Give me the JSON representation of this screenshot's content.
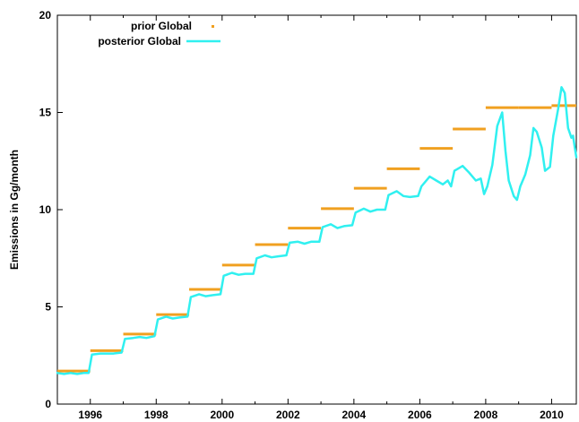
{
  "chart_data": {
    "type": "line",
    "ylabel": "Emissions in Gg/month",
    "xlim": [
      1995.0,
      2010.75
    ],
    "ylim": [
      0,
      20
    ],
    "x_ticks": [
      1996,
      1998,
      2000,
      2002,
      2004,
      2006,
      2008,
      2010
    ],
    "y_ticks": [
      0,
      5,
      10,
      15,
      20
    ],
    "grid": false,
    "legend": "top-left",
    "colors": {
      "prior": "#f0a020",
      "posterior": "#30f0f0"
    },
    "series": [
      {
        "name": "prior Global",
        "style": "annual-segments",
        "segments": [
          {
            "x_start": 1995,
            "x_end": 1996,
            "value": 1.7
          },
          {
            "x_start": 1996,
            "x_end": 1997,
            "value": 2.75
          },
          {
            "x_start": 1997,
            "x_end": 1998,
            "value": 3.6
          },
          {
            "x_start": 1998,
            "x_end": 1999,
            "value": 4.6
          },
          {
            "x_start": 1999,
            "x_end": 2000,
            "value": 5.9
          },
          {
            "x_start": 2000,
            "x_end": 2001,
            "value": 7.15
          },
          {
            "x_start": 2001,
            "x_end": 2002,
            "value": 8.2
          },
          {
            "x_start": 2002,
            "x_end": 2003,
            "value": 9.05
          },
          {
            "x_start": 2003,
            "x_end": 2004,
            "value": 10.05
          },
          {
            "x_start": 2004,
            "x_end": 2005,
            "value": 11.1
          },
          {
            "x_start": 2005,
            "x_end": 2006,
            "value": 12.1
          },
          {
            "x_start": 2006,
            "x_end": 2007,
            "value": 13.15
          },
          {
            "x_start": 2007,
            "x_end": 2008,
            "value": 14.15
          },
          {
            "x_start": 2008,
            "x_end": 2009,
            "value": 15.25
          },
          {
            "x_start": 2009,
            "x_end": 2010,
            "value": 15.25
          },
          {
            "x_start": 2010,
            "x_end": 2010.75,
            "value": 15.35
          }
        ]
      },
      {
        "name": "posterior Global",
        "style": "line",
        "points": [
          [
            1995.0,
            1.6
          ],
          [
            1995.2,
            1.55
          ],
          [
            1995.4,
            1.6
          ],
          [
            1995.6,
            1.55
          ],
          [
            1995.8,
            1.6
          ],
          [
            1995.95,
            1.6
          ],
          [
            1996.05,
            2.55
          ],
          [
            1996.3,
            2.6
          ],
          [
            1996.5,
            2.6
          ],
          [
            1996.7,
            2.6
          ],
          [
            1996.95,
            2.65
          ],
          [
            1997.05,
            3.35
          ],
          [
            1997.3,
            3.4
          ],
          [
            1997.5,
            3.45
          ],
          [
            1997.7,
            3.4
          ],
          [
            1997.95,
            3.5
          ],
          [
            1998.05,
            4.35
          ],
          [
            1998.3,
            4.5
          ],
          [
            1998.5,
            4.4
          ],
          [
            1998.7,
            4.45
          ],
          [
            1998.95,
            4.5
          ],
          [
            1999.05,
            5.5
          ],
          [
            1999.3,
            5.65
          ],
          [
            1999.5,
            5.55
          ],
          [
            1999.7,
            5.6
          ],
          [
            1999.95,
            5.65
          ],
          [
            2000.05,
            6.6
          ],
          [
            2000.3,
            6.75
          ],
          [
            2000.5,
            6.65
          ],
          [
            2000.7,
            6.7
          ],
          [
            2000.95,
            6.7
          ],
          [
            2001.05,
            7.5
          ],
          [
            2001.3,
            7.65
          ],
          [
            2001.5,
            7.55
          ],
          [
            2001.7,
            7.6
          ],
          [
            2001.95,
            7.65
          ],
          [
            2002.05,
            8.3
          ],
          [
            2002.3,
            8.35
          ],
          [
            2002.5,
            8.25
          ],
          [
            2002.7,
            8.35
          ],
          [
            2002.95,
            8.35
          ],
          [
            2003.05,
            9.1
          ],
          [
            2003.3,
            9.25
          ],
          [
            2003.5,
            9.05
          ],
          [
            2003.7,
            9.15
          ],
          [
            2003.95,
            9.2
          ],
          [
            2004.05,
            9.85
          ],
          [
            2004.3,
            10.05
          ],
          [
            2004.5,
            9.9
          ],
          [
            2004.7,
            10.0
          ],
          [
            2004.95,
            10.0
          ],
          [
            2005.05,
            10.75
          ],
          [
            2005.3,
            10.95
          ],
          [
            2005.5,
            10.7
          ],
          [
            2005.7,
            10.65
          ],
          [
            2005.95,
            10.7
          ],
          [
            2006.05,
            11.2
          ],
          [
            2006.3,
            11.7
          ],
          [
            2006.5,
            11.5
          ],
          [
            2006.7,
            11.3
          ],
          [
            2006.85,
            11.5
          ],
          [
            2006.95,
            11.2
          ],
          [
            2007.05,
            12.0
          ],
          [
            2007.3,
            12.25
          ],
          [
            2007.5,
            11.9
          ],
          [
            2007.7,
            11.5
          ],
          [
            2007.85,
            11.6
          ],
          [
            2007.95,
            10.8
          ],
          [
            2008.05,
            11.2
          ],
          [
            2008.2,
            12.3
          ],
          [
            2008.35,
            14.3
          ],
          [
            2008.5,
            15.0
          ],
          [
            2008.6,
            13.0
          ],
          [
            2008.7,
            11.5
          ],
          [
            2008.85,
            10.7
          ],
          [
            2008.95,
            10.5
          ],
          [
            2009.05,
            11.2
          ],
          [
            2009.2,
            11.8
          ],
          [
            2009.35,
            12.8
          ],
          [
            2009.45,
            14.2
          ],
          [
            2009.55,
            14.0
          ],
          [
            2009.7,
            13.2
          ],
          [
            2009.8,
            12.0
          ],
          [
            2009.95,
            12.2
          ],
          [
            2010.05,
            13.8
          ],
          [
            2010.2,
            15.2
          ],
          [
            2010.3,
            16.3
          ],
          [
            2010.4,
            16.0
          ],
          [
            2010.5,
            14.2
          ],
          [
            2010.6,
            13.7
          ],
          [
            2010.65,
            13.8
          ],
          [
            2010.75,
            12.7
          ]
        ]
      }
    ]
  }
}
